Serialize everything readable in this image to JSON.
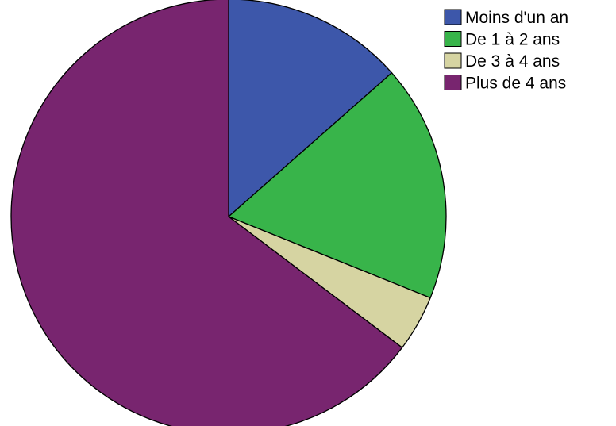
{
  "chart_data": {
    "type": "pie",
    "title": "",
    "start_angle_deg": 0,
    "direction": "clockwise",
    "legend_position": "top-right",
    "slices": [
      {
        "label": "Moins d'un an",
        "value": 13.5,
        "color": "#3d57aa"
      },
      {
        "label": "De 1 à 2 ans",
        "value": 17.6,
        "color": "#38b44a"
      },
      {
        "label": "De 3 à 4 ans",
        "value": 4.2,
        "color": "#d6d4a2"
      },
      {
        "label": "Plus de 4 ans",
        "value": 64.7,
        "color": "#78256f"
      }
    ]
  }
}
